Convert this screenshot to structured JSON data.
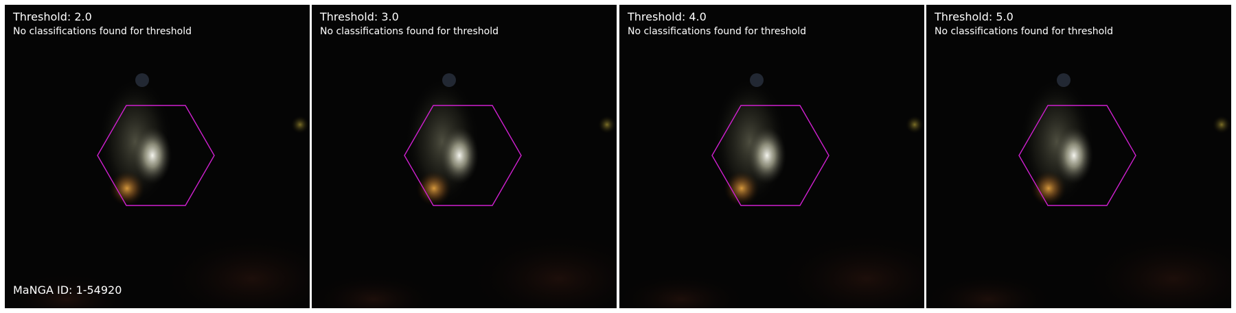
{
  "manga_id_label": "MaNGA ID: 1-54920",
  "panels": [
    {
      "title": "Threshold: 2.0",
      "message": "No classifications found for threshold"
    },
    {
      "title": "Threshold: 3.0",
      "message": "No classifications found for threshold"
    },
    {
      "title": "Threshold: 4.0",
      "message": "No classifications found for threshold"
    },
    {
      "title": "Threshold: 5.0",
      "message": "No classifications found for threshold"
    }
  ],
  "colors": {
    "hexagon_outline": "#d020d0",
    "sky_background": "#050505",
    "galaxy_core": "#f0f0e8",
    "galaxy_bulge": "#d8a040",
    "text": "#ffffff"
  }
}
